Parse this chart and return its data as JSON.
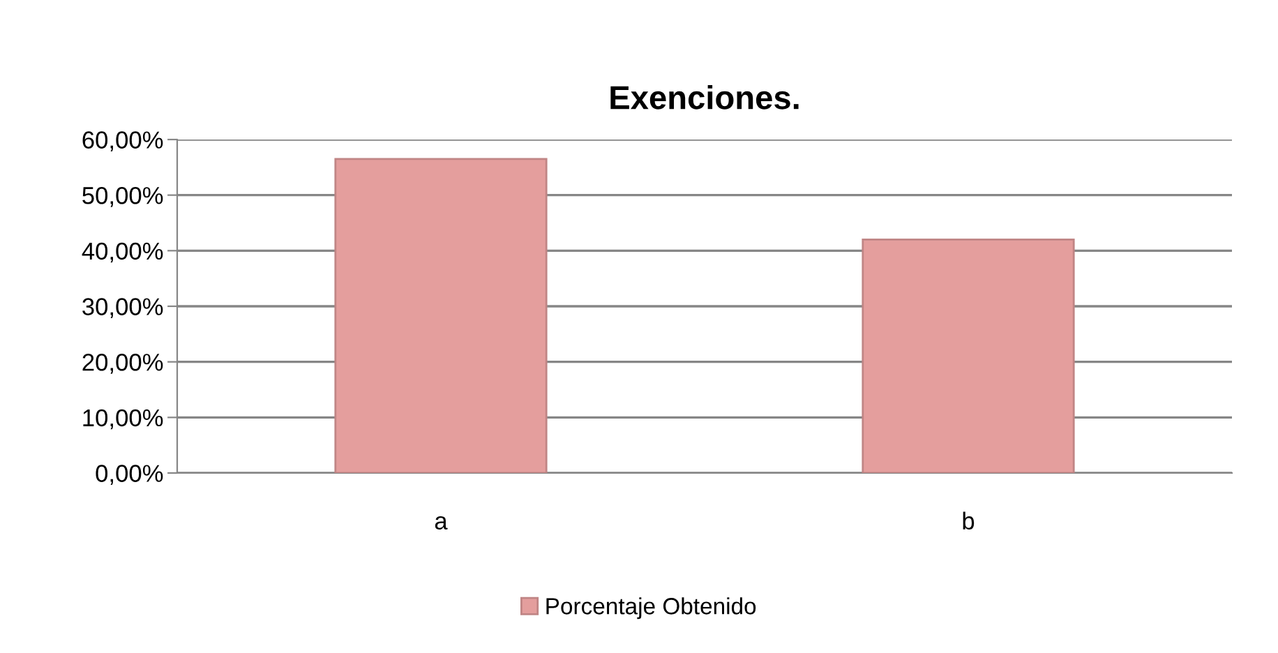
{
  "chart_data": {
    "type": "bar",
    "title": "Exenciones.",
    "categories": [
      "a",
      "b"
    ],
    "series": [
      {
        "name": "Porcentaje Obtenido",
        "color": "#e49e9d",
        "values": [
          56.5,
          42.0
        ]
      }
    ],
    "ylim": [
      0,
      60
    ],
    "yticks": [
      {
        "value": 0,
        "label": "0,00%"
      },
      {
        "value": 10,
        "label": "10,00%"
      },
      {
        "value": 20,
        "label": "20,00%"
      },
      {
        "value": 30,
        "label": "30,00%"
      },
      {
        "value": 40,
        "label": "40,00%"
      },
      {
        "value": 50,
        "label": "50,00%"
      },
      {
        "value": 60,
        "label": "60,00%"
      }
    ],
    "grid": "y",
    "legend": "bottom"
  }
}
